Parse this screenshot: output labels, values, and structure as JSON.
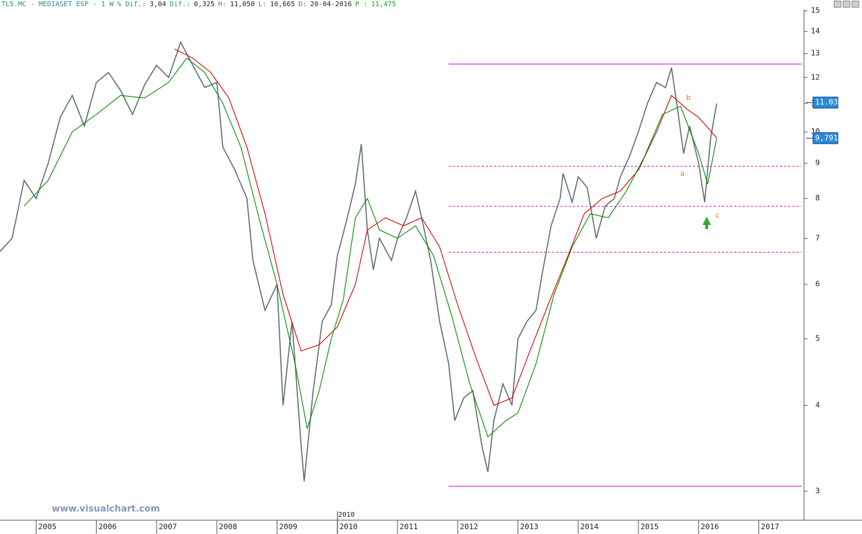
{
  "header": [
    "TL5.MC - MEDIASET ESP - 1 W",
    "% Dif.:",
    "3,04",
    "Dif.:",
    "0,325",
    "H:",
    "11,050",
    "L:",
    "10,665",
    "D:",
    "20-04-2016",
    "P :",
    "11,475"
  ],
  "watermark": "www.visualchart.com",
  "cursor_label": "2010",
  "chart_data": {
    "type": "line",
    "log_y": true,
    "xlim": [
      2004.4,
      2017.75
    ],
    "ylim": [
      2.735,
      15.2
    ],
    "xticks": [
      2005,
      2006,
      2007,
      2008,
      2009,
      2010,
      2011,
      2012,
      2013,
      2014,
      2015,
      2016,
      2017
    ],
    "yticks": [
      3,
      4,
      5,
      6,
      7,
      8,
      9,
      10,
      11,
      12,
      13,
      14,
      15
    ],
    "series": [
      {
        "name": "Price",
        "color": "#5f6f6f",
        "x": [
          2004.4,
          2004.6,
          2004.8,
          2005.0,
          2005.2,
          2005.4,
          2005.6,
          2005.8,
          2006.0,
          2006.2,
          2006.4,
          2006.6,
          2006.8,
          2007.0,
          2007.2,
          2007.4,
          2007.6,
          2007.8,
          2008.0,
          2008.1,
          2008.3,
          2008.5,
          2008.6,
          2008.8,
          2009.0,
          2009.1,
          2009.25,
          2009.4,
          2009.45,
          2009.6,
          2009.75,
          2009.9,
          2010.0,
          2010.15,
          2010.3,
          2010.4,
          2010.5,
          2010.6,
          2010.7,
          2010.9,
          2011.0,
          2011.15,
          2011.3,
          2011.4,
          2011.55,
          2011.7,
          2011.85,
          2011.95,
          2012.1,
          2012.25,
          2012.4,
          2012.5,
          2012.6,
          2012.75,
          2012.9,
          2013.0,
          2013.15,
          2013.3,
          2013.4,
          2013.55,
          2013.7,
          2013.75,
          2013.9,
          2014.0,
          2014.15,
          2014.3,
          2014.45,
          2014.6,
          2014.7,
          2014.85,
          2015.0,
          2015.15,
          2015.3,
          2015.45,
          2015.55,
          2015.65,
          2015.75,
          2015.85,
          2016.0,
          2016.1,
          2016.2,
          2016.3
        ],
        "values": [
          6.7,
          7.0,
          8.5,
          8.0,
          9.0,
          10.5,
          11.3,
          10.2,
          11.8,
          12.2,
          11.5,
          10.6,
          11.7,
          12.5,
          12.0,
          13.5,
          12.5,
          11.6,
          11.8,
          9.5,
          8.8,
          8.0,
          6.5,
          5.5,
          6.0,
          4.0,
          5.3,
          3.5,
          3.1,
          4.2,
          5.3,
          5.6,
          6.6,
          7.4,
          8.4,
          9.6,
          7.2,
          6.3,
          7.0,
          6.5,
          7.0,
          7.5,
          8.2,
          7.5,
          6.5,
          5.3,
          4.6,
          3.8,
          4.1,
          4.2,
          3.5,
          3.2,
          3.8,
          4.3,
          4.0,
          5.0,
          5.3,
          5.5,
          6.2,
          7.3,
          8.0,
          8.7,
          7.9,
          8.6,
          8.3,
          7.0,
          7.8,
          8.0,
          8.6,
          9.2,
          10.0,
          11.0,
          11.8,
          11.6,
          12.4,
          10.8,
          9.3,
          10.2,
          9.0,
          7.9,
          9.8,
          11.0
        ]
      },
      {
        "name": "Moving Average (slow)",
        "color": "#d40000",
        "x": [
          2007.3,
          2007.6,
          2007.9,
          2008.2,
          2008.5,
          2008.8,
          2009.1,
          2009.4,
          2009.7,
          2010.0,
          2010.3,
          2010.5,
          2010.8,
          2011.1,
          2011.4,
          2011.7,
          2012.0,
          2012.3,
          2012.6,
          2012.9,
          2013.2,
          2013.5,
          2013.8,
          2014.1,
          2014.4,
          2014.7,
          2015.0,
          2015.3,
          2015.55,
          2015.8,
          2016.0,
          2016.3
        ],
        "values": [
          13.2,
          12.8,
          12.2,
          11.2,
          9.5,
          7.6,
          5.8,
          4.8,
          4.9,
          5.2,
          6.0,
          7.2,
          7.5,
          7.3,
          7.5,
          6.8,
          5.6,
          4.7,
          4.0,
          4.1,
          4.8,
          5.6,
          6.5,
          7.6,
          8.0,
          8.2,
          8.8,
          10.0,
          11.3,
          10.8,
          10.5,
          9.8
        ]
      },
      {
        "name": "Moving Average (fast)",
        "color": "#008a00",
        "x": [
          2004.8,
          2005.2,
          2005.6,
          2006.0,
          2006.4,
          2006.8,
          2007.2,
          2007.5,
          2007.8,
          2008.1,
          2008.4,
          2008.7,
          2009.0,
          2009.3,
          2009.5,
          2009.7,
          2009.9,
          2010.1,
          2010.3,
          2010.5,
          2010.7,
          2011.0,
          2011.3,
          2011.6,
          2011.9,
          2012.2,
          2012.5,
          2012.8,
          2013.0,
          2013.3,
          2013.6,
          2013.9,
          2014.2,
          2014.5,
          2014.8,
          2015.1,
          2015.4,
          2015.7,
          2016.0,
          2016.15,
          2016.3
        ],
        "values": [
          7.8,
          8.5,
          10.0,
          10.6,
          11.3,
          11.2,
          11.8,
          12.8,
          12.2,
          11.0,
          9.5,
          7.5,
          6.0,
          4.6,
          3.7,
          4.2,
          5.0,
          5.7,
          7.5,
          8.0,
          7.2,
          7.0,
          7.3,
          6.6,
          5.4,
          4.3,
          3.6,
          3.8,
          3.9,
          4.6,
          5.8,
          6.8,
          7.6,
          7.5,
          8.2,
          9.2,
          10.6,
          10.9,
          9.3,
          8.4,
          9.8
        ]
      }
    ],
    "levels": [
      {
        "value": 12.55,
        "x": [
          2011.85,
          2017.71
        ],
        "dashed": false,
        "color": "#cc00cc"
      },
      {
        "value": 8.91,
        "x": [
          2011.85,
          2017.71
        ],
        "dashed": true,
        "color": "#cc00cc"
      },
      {
        "value": 7.79,
        "x": [
          2011.85,
          2017.71
        ],
        "dashed": true,
        "color": "#cc00cc"
      },
      {
        "value": 6.68,
        "x": [
          2011.85,
          2017.71
        ],
        "dashed": true,
        "color": "#cc00cc"
      },
      {
        "value": 3.05,
        "x": [
          2011.85,
          2017.71
        ],
        "dashed": false,
        "color": "#cc00cc"
      }
    ],
    "price_tags": [
      11.03,
      {
        "value": 9.791,
        "label": "9,791"
      }
    ],
    "annotations": [
      {
        "text": "a",
        "x": 2015.73,
        "y": 8.69
      },
      {
        "text": "b",
        "x": 2015.83,
        "y": 11.2
      },
      {
        "text": "c",
        "x": 2016.31,
        "y": 7.55
      }
    ]
  }
}
